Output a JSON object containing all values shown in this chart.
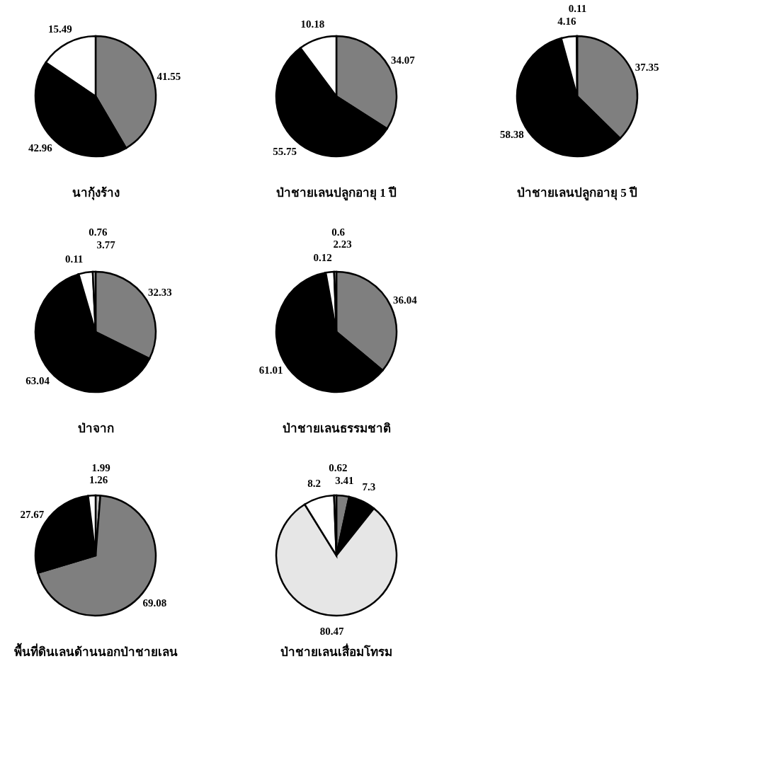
{
  "chart_data": [
    {
      "type": "pie",
      "title": "นากุ้งร้าง",
      "categories": [
        null,
        null,
        null
      ],
      "values": [
        41.55,
        42.96,
        15.49
      ],
      "colors": [
        "#7f7f7f",
        "#000000",
        "#ffffff"
      ],
      "data_labels": true
    },
    {
      "type": "pie",
      "title": "ป่าชายเลนปลูกอายุ 1 ปี",
      "categories": [
        null,
        null,
        null
      ],
      "values": [
        34.07,
        55.75,
        10.18
      ],
      "colors": [
        "#7f7f7f",
        "#000000",
        "#ffffff"
      ],
      "data_labels": true
    },
    {
      "type": "pie",
      "title": "ป่าชายเลนปลูกอายุ 5 ปี",
      "categories": [
        null,
        null,
        null,
        null
      ],
      "values": [
        37.35,
        58.38,
        4.16,
        0.11
      ],
      "colors": [
        "#7f7f7f",
        "#000000",
        "#ffffff",
        "#bfbfbf"
      ],
      "data_labels": true
    },
    {
      "type": "pie",
      "title": "ป่าจาก",
      "categories": [
        null,
        null,
        null,
        null,
        null
      ],
      "values": [
        32.33,
        63.04,
        0.11,
        3.77,
        0.76
      ],
      "colors": [
        "#7f7f7f",
        "#000000",
        "#e6e6e6",
        "#ffffff",
        "#bfbfbf"
      ],
      "data_labels": true
    },
    {
      "type": "pie",
      "title": "ป่าชายเลนธรรมชาติ",
      "categories": [
        null,
        null,
        null,
        null,
        null
      ],
      "values": [
        36.04,
        61.01,
        0.12,
        2.23,
        0.6
      ],
      "colors": [
        "#7f7f7f",
        "#000000",
        "#e6e6e6",
        "#ffffff",
        "#bfbfbf"
      ],
      "data_labels": true
    },
    {
      "type": "pie",
      "title": "พื้นที่ดินเลนด้านนอกป่าชายเลน",
      "categories": [
        null,
        null,
        null,
        null
      ],
      "values": [
        1.26,
        69.08,
        27.67,
        1.99
      ],
      "colors": [
        "#bfbfbf",
        "#7f7f7f",
        "#000000",
        "#ffffff"
      ],
      "data_labels": true
    },
    {
      "type": "pie",
      "title": "ป่าชายเลนเสื่อมโทรม",
      "categories": [
        null,
        null,
        null,
        null,
        null
      ],
      "values": [
        3.41,
        7.3,
        80.47,
        8.2,
        0.62
      ],
      "colors": [
        "#7f7f7f",
        "#000000",
        "#e6e6e6",
        "#ffffff",
        "#bfbfbf"
      ],
      "data_labels": true
    }
  ]
}
